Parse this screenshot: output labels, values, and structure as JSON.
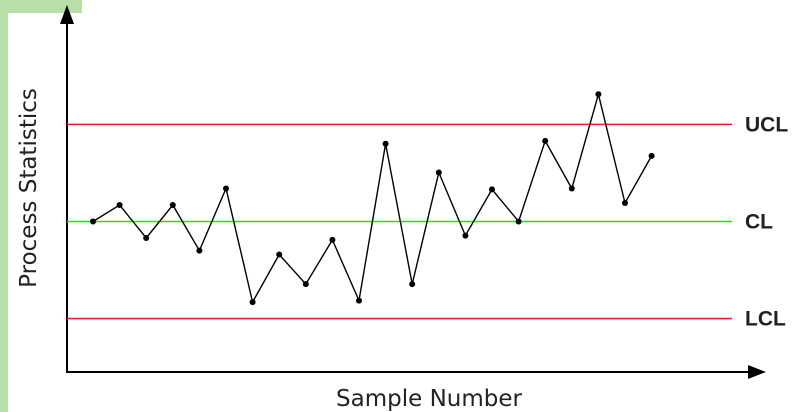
{
  "chart_data": {
    "type": "line",
    "xlabel": "Sample Number",
    "ylabel": "Process Statistics",
    "ylim": [
      -3.1,
      4.15
    ],
    "grid": false,
    "legend": "none",
    "series": [
      {
        "x": [
          1,
          2,
          3,
          4,
          5,
          6,
          7,
          8,
          9,
          10,
          11,
          12,
          13,
          14,
          15,
          16,
          17,
          18,
          19,
          20,
          21,
          22,
          23,
          24,
          25
        ],
        "values": [
          0.0,
          0.34,
          -0.34,
          0.34,
          -0.6,
          0.68,
          -1.66,
          -0.68,
          -1.29,
          -0.38,
          -1.63,
          1.6,
          -1.29,
          1.01,
          -0.29,
          0.66,
          0.0,
          1.66,
          0.68,
          2.62,
          0.38,
          1.35,
          null,
          null,
          null
        ],
        "color": "#000000"
      }
    ],
    "reference_lines": [
      {
        "label": "UCL",
        "value": 2.0,
        "color": "#e0202a"
      },
      {
        "label": "CL",
        "value": 0.0,
        "color": "#22dd22"
      },
      {
        "label": "LCL",
        "value": -2.0,
        "color": "#e0202a"
      }
    ]
  }
}
